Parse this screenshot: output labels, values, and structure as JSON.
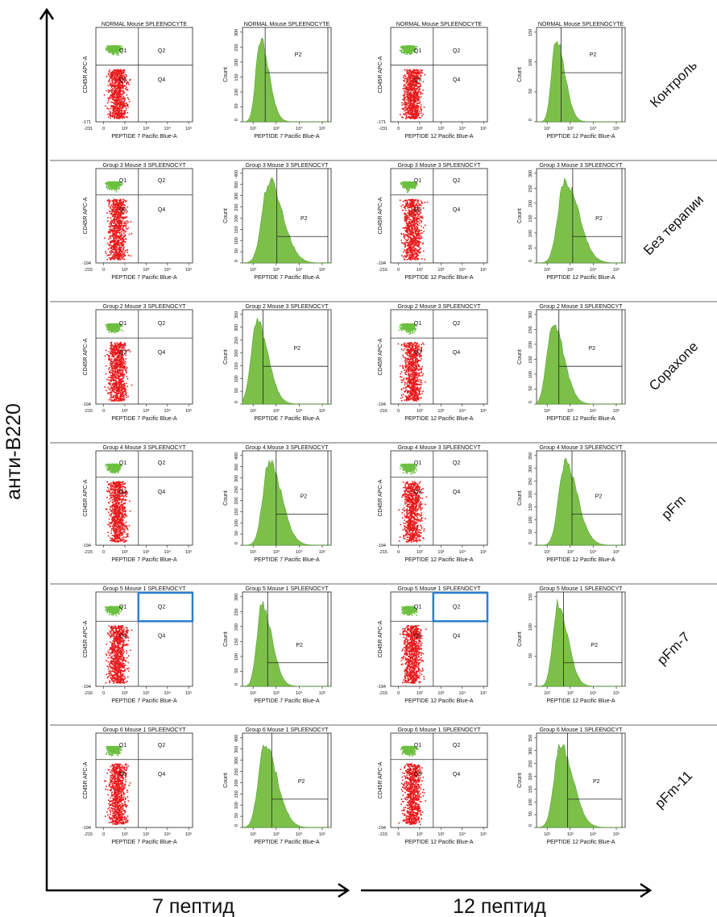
{
  "figure": {
    "y_axis_label": "анти-B220",
    "x_axis_labels": [
      "7 пептид",
      "12 пептид"
    ],
    "colors": {
      "cd45r_high_events": "#6cc040",
      "cd45r_low_events": "#e8191c",
      "histogram_fill": "#7cc04a",
      "histogram_edge": "#4d9a2a",
      "row_separator": "#9a9a9a",
      "highlight_box": "#2b7fd0",
      "axis": "#000000"
    }
  },
  "panel_text": {
    "dot_y_label": "CD45R APC-A",
    "hist_y_label": "Count",
    "quadrants": [
      "Q1",
      "Q2",
      "Q3",
      "Q4"
    ],
    "gate": "P2",
    "x_ticks": [
      "0",
      "10²",
      "10³",
      "10⁴",
      "10⁵"
    ]
  },
  "chart_data": {
    "type": "flow-cytometry-grid",
    "columns": [
      {
        "peptide": "7",
        "x_label": "PEPTIDE 7 Pacific Blue-A",
        "panel_types": [
          "dot",
          "histogram"
        ]
      },
      {
        "peptide": "12",
        "x_label": "PEPTIDE 12 Pacific Blue-A",
        "panel_types": [
          "dot",
          "histogram"
        ]
      }
    ],
    "rows": [
      {
        "label": "Контроль",
        "panel_titles": [
          "NORMAL Mouse SPLEENOCYTE",
          "NORMAL Mouse SPLEENOCYTE",
          "NORMAL Mouse SPLEENOCYTE",
          "NORMAL Mouse SPLEENOCYTE"
        ],
        "dot_y_min": [
          "-171",
          "-171"
        ],
        "dot_x_min": [
          "-231",
          "-231"
        ],
        "hist_y_ticks": [
          [
            "0",
            "50",
            "100",
            "150",
            "200",
            "250",
            "300"
          ],
          [
            "0",
            "50",
            "100",
            "150"
          ]
        ]
      },
      {
        "label": "Без терапии",
        "panel_titles": [
          "Group 3 Mouse 3 SPLEENOCYT",
          "Group 3 Mouse 3 SPLEENOCYT",
          "Group 3 Mouse 3 SPLEENOCYT",
          "Group 3 Mouse 3 SPLEENOCYT"
        ],
        "dot_y_min": [
          "-194",
          "-194"
        ],
        "dot_x_min": [
          "-215",
          "-216"
        ],
        "hist_y_ticks": [
          [
            "0",
            "50",
            "100",
            "150",
            "200",
            "250",
            "300",
            "350",
            "400"
          ],
          [
            "0",
            "50",
            "100",
            "150",
            "200",
            "250",
            "300"
          ]
        ]
      },
      {
        "label": "Copaxone",
        "panel_titles": [
          "Group 2 Mouse 3 SPLEENOCYT",
          "Group 2 Mouse 3 SPLEENOCYT",
          "Group 2 Mouse 3 SPLEENOCYT",
          "Group 2 Mouse 3 SPLEENOCYT"
        ],
        "dot_y_min": [
          "-194",
          "-194"
        ],
        "dot_x_min": [
          "-215",
          "-216"
        ],
        "hist_y_ticks": [
          [
            "0",
            "50",
            "100",
            "150",
            "200",
            "250",
            "300",
            "350"
          ],
          [
            "0",
            "50",
            "100",
            "150",
            "200",
            "250",
            "300"
          ]
        ]
      },
      {
        "label": "pFm",
        "panel_titles": [
          "Group 4 Mouse 3 SPLEENOCYT",
          "Group 4 Mouse 3 SPLEENOCYT",
          "Group 4 Mouse 3 SPLEENOCYT",
          "Group 4 Mouse 3 SPLEENOCYT"
        ],
        "dot_y_min": [
          "-194",
          "-194"
        ],
        "dot_x_min": [
          "-215",
          "-215"
        ],
        "hist_y_ticks": [
          [
            "0",
            "50",
            "100",
            "150",
            "200",
            "250",
            "300",
            "350",
            "400"
          ],
          [
            "0",
            "50",
            "100",
            "150",
            "200",
            "250",
            "300",
            "350"
          ]
        ]
      },
      {
        "label": "pFm-7",
        "panel_titles": [
          "Group 5 Mouse 1 SPLEENOCYT",
          "Group 5 Mouse 1 SPLEENOCYT",
          "Group 5 Mouse 1 SPLEENOCYT",
          "Group 5 Mouse 1 SPLEENOCYT"
        ],
        "dot_y_min": [
          "-194",
          "-194"
        ],
        "dot_x_min": [
          "-216",
          "-215"
        ],
        "hist_y_ticks": [
          [
            "0",
            "50",
            "100",
            "150",
            "200",
            "250",
            "300"
          ],
          [
            "0",
            "50",
            "100",
            "150"
          ]
        ],
        "highlighted_quadrant": "Q2"
      },
      {
        "label": "pFm-11",
        "panel_titles": [
          "Group 6 Mouse 1 SPLEENOCYT",
          "Group 6 Mouse 1 SPLEENOCYT",
          "Group 6 Mouse 1 SPLEENOCYT",
          "Group 6 Mouse 1 SPLEENOCYT"
        ],
        "dot_y_min": [
          "-194",
          "-194"
        ],
        "dot_x_min": [
          "-215",
          "-215"
        ],
        "hist_y_ticks": [
          [
            "0",
            "50",
            "100",
            "150",
            "200",
            "250",
            "300",
            "350",
            "400"
          ],
          [
            "0",
            "50",
            "100",
            "150",
            "200",
            "250",
            "300",
            "350"
          ]
        ]
      }
    ]
  }
}
